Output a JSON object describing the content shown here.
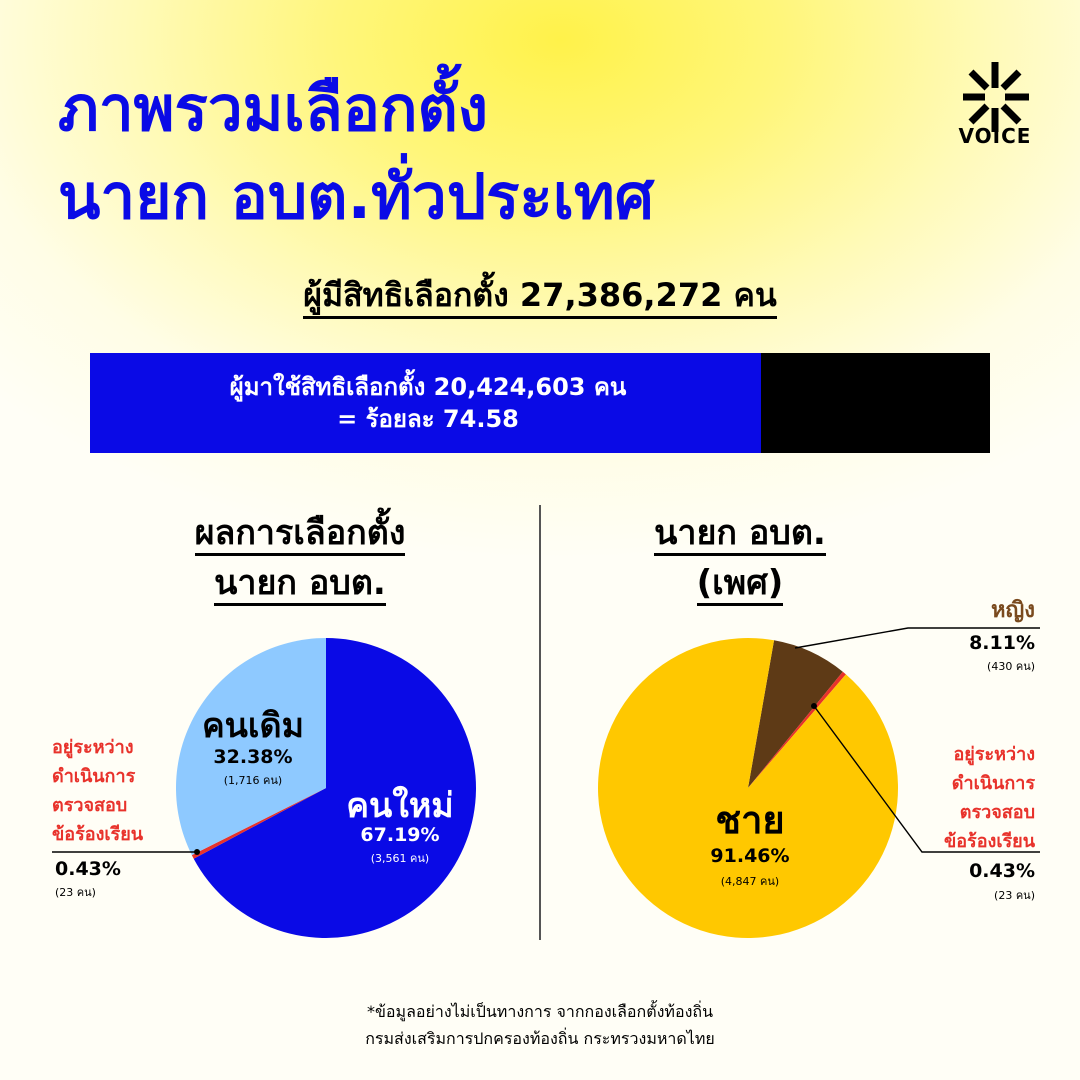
{
  "title": {
    "line1": "ภาพรวมเลือกตั้ง",
    "line2": "นายก อบต.ทั่วประเทศ"
  },
  "brand": {
    "name": "VOICE",
    "icon": "voice-burst-logo"
  },
  "eligible": {
    "label": "ผู้มีสิทธิเลือกตั้ง",
    "value": "27,386,272 คน"
  },
  "turnout": {
    "label": "ผู้มาใช้สิทธิเลือกตั้ง",
    "value": "20,424,603 คน",
    "percent_text": "= ร้อยละ 74.58",
    "fraction": 0.7458
  },
  "section_left": {
    "title_line1": "ผลการเลือกตั้ง",
    "title_line2": "นายก อบต."
  },
  "section_right": {
    "title_line1": "นายก อบต.",
    "title_line2": "(เพศ)"
  },
  "chart_data": [
    {
      "type": "pie",
      "slices": [
        {
          "label": "คนใหม่",
          "percent": 67.19,
          "count": "(3,561 คน)",
          "pct_text": "67.19%",
          "color": "#0a0ae6"
        },
        {
          "label": "คนเดิม",
          "percent": 32.38,
          "count": "(1,716 คน)",
          "pct_text": "32.38%",
          "color": "#8ec9ff"
        },
        {
          "label": "อยู่ระหว่าง ดำเนินการ ตรวจสอบ ข้อร้องเรียน",
          "percent": 0.43,
          "count": "(23 คน)",
          "pct_text": "0.43%",
          "color": "#e8322b"
        }
      ]
    },
    {
      "type": "pie",
      "slices": [
        {
          "label": "ชาย",
          "percent": 91.46,
          "count": "(4,847 คน)",
          "pct_text": "91.46%",
          "color": "#ffc800"
        },
        {
          "label": "หญิง",
          "percent": 8.11,
          "count": "(430 คน)",
          "pct_text": "8.11%",
          "color": "#5e3a16"
        },
        {
          "label": "อยู่ระหว่าง ดำเนินการ ตรวจสอบ ข้อร้องเรียน",
          "percent": 0.43,
          "count": "(23 คน)",
          "pct_text": "0.43%",
          "color": "#e8322b"
        }
      ]
    }
  ],
  "pending_note": {
    "line1": "อยู่ระหว่าง",
    "line2": "ดำเนินการ",
    "line3": "ตรวจสอบ",
    "line4": "ข้อร้องเรียน"
  },
  "footnote": {
    "line1": "*ข้อมูลอย่างไม่เป็นทางการ จากกองเลือกตั้งท้องถิ่น",
    "line2": "กรมส่งเสริมการปกครองท้องถิ่น กระทรวงมหาดไทย"
  }
}
